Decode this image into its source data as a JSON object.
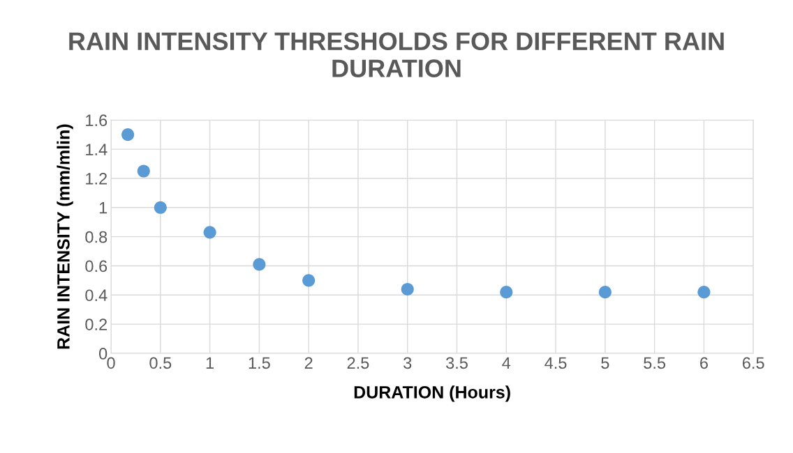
{
  "chart_data": {
    "type": "scatter",
    "title": "RAIN INTENSITY THRESHOLDS FOR DIFFERENT RAIN DURATION",
    "xlabel": "DURATION (Hours)",
    "ylabel": "RAIN INTENSITY (mm/mlin)",
    "x": [
      0.17,
      0.33,
      0.5,
      1,
      1.5,
      2,
      3,
      4,
      5,
      6
    ],
    "series": [
      {
        "color": "#5b9bd5",
        "values": [
          1.5,
          1.25,
          1.0,
          0.83,
          0.61,
          0.5,
          0.44,
          0.42,
          0.42,
          0.42
        ]
      }
    ],
    "xlim": [
      0,
      6.5
    ],
    "xticks": [
      0,
      0.5,
      1,
      1.5,
      2,
      2.5,
      3,
      3.5,
      4,
      4.5,
      5,
      5.5,
      6,
      6.5
    ],
    "ylim": [
      0,
      1.6
    ],
    "yticks": [
      0,
      0.2,
      0.4,
      0.6,
      0.8,
      1,
      1.2,
      1.4,
      1.6
    ],
    "grid": true,
    "marker": "circle"
  }
}
